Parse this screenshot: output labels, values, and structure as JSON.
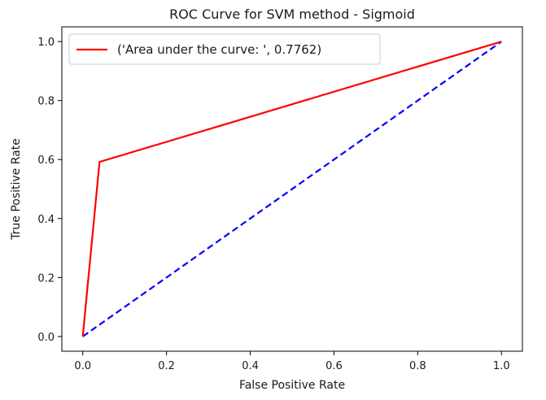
{
  "chart_data": {
    "type": "line",
    "title": "ROC Curve for SVM method - Sigmoid",
    "xlabel": "False Positive Rate",
    "ylabel": "True Positive Rate",
    "xlim": [
      -0.05,
      1.05
    ],
    "ylim": [
      -0.05,
      1.05
    ],
    "xticks": [
      0.0,
      0.2,
      0.4,
      0.6,
      0.8,
      1.0
    ],
    "yticks": [
      0.0,
      0.2,
      0.4,
      0.6,
      0.8,
      1.0
    ],
    "xtick_labels": [
      "0.0",
      "0.2",
      "0.4",
      "0.6",
      "0.8",
      "1.0"
    ],
    "ytick_labels": [
      "0.0",
      "0.2",
      "0.4",
      "0.6",
      "0.8",
      "1.0"
    ],
    "grid": false,
    "legend_position": "top-left",
    "legend": {
      "label": "('Area under the curve: ', 0.7762)"
    },
    "series": [
      {
        "name": "('Area under the curve: ', 0.7762)",
        "color": "#ff0000",
        "style": "solid",
        "x": [
          0.0,
          0.04,
          1.0
        ],
        "y": [
          0.0,
          0.592,
          1.0
        ]
      },
      {
        "color": "#0000ff",
        "style": "dashed",
        "x": [
          0.0,
          1.0
        ],
        "y": [
          0.0,
          1.0
        ]
      }
    ]
  }
}
